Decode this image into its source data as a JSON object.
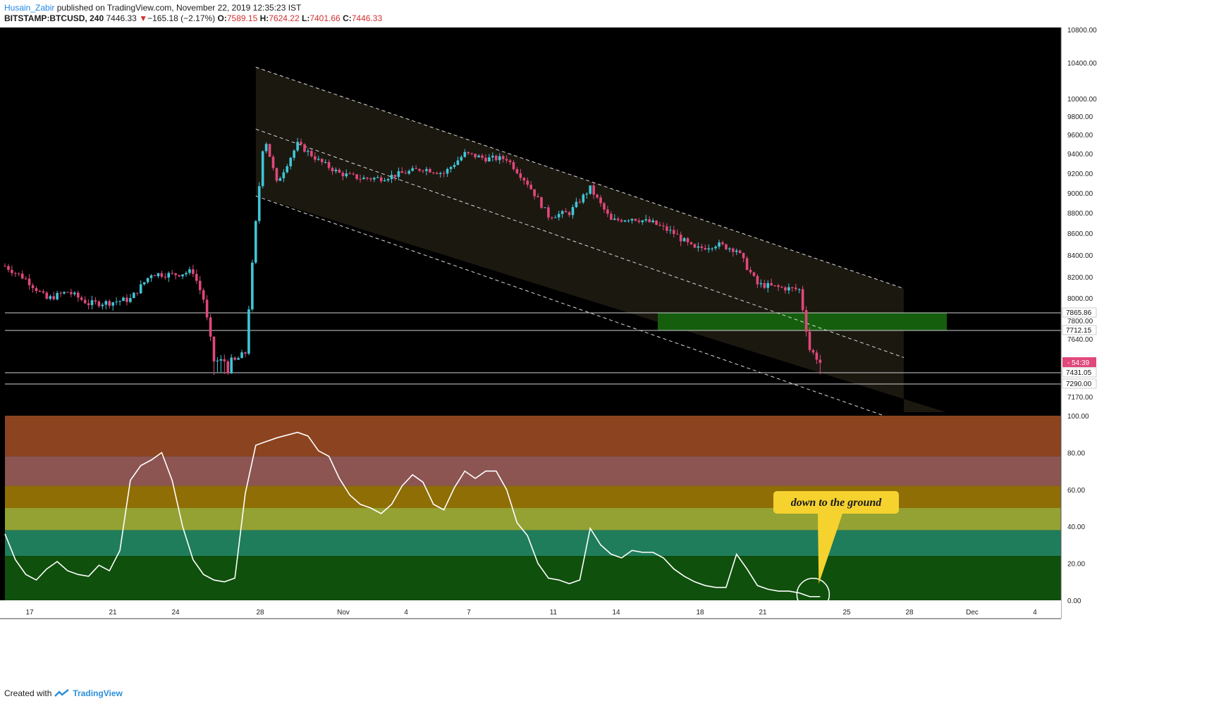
{
  "header": {
    "author": "Husain_Zabir",
    "published_text": "published on TradingView.com, November 22, 2019 12:35:23 IST",
    "symbol": "BITSTAMP:BTCUSD, 240",
    "last": "7446.33",
    "change_arrow": "▼",
    "change": "−165.18 (−2.17%)",
    "o_label": "O:",
    "o": "7589.15",
    "h_label": "H:",
    "h": "7624.22",
    "l_label": "L:",
    "l": "7401.66",
    "c_label": "C:",
    "c": "7446.33"
  },
  "footer": {
    "created_with": "Created with",
    "brand": "TradingView"
  },
  "colors": {
    "up": "#3fc6d6",
    "down": "#e0487a",
    "bg": "#000000",
    "channel_fill": "#1b1810",
    "zone": "#155e0e",
    "oscillator_line": "#ffffff",
    "annotation_bg": "#f5d22e"
  },
  "annotation": "down to the ground",
  "chart_data": [
    {
      "type": "candlestick",
      "title": "",
      "xlabels": [
        "17",
        "21",
        "24",
        "28",
        "Nov",
        "4",
        "7",
        "11",
        "14",
        "18",
        "21",
        "25",
        "28",
        "Dec",
        "4"
      ],
      "price_ticks": [
        10800,
        10400,
        10000,
        9800,
        9600,
        9400,
        9200,
        9000,
        8800,
        8600,
        8400,
        8200,
        8000,
        7800,
        7640,
        7170
      ],
      "level_labels": [
        "7865.86",
        "7712.15",
        "7431.05",
        "7290.00"
      ],
      "horizontal_lines": [
        7865.86,
        7712.15,
        7431.05,
        7290.0
      ],
      "current_price_label": "54:39",
      "demand_zone": {
        "from": 7712.15,
        "to": 7865.86
      },
      "channel": {
        "upper": [
          {
            "x": "2019-10-26",
            "y": 10350
          },
          {
            "x": "2019-11-26",
            "y": 8090
          }
        ],
        "middle": [
          {
            "x": "2019-10-26",
            "y": 9660
          },
          {
            "x": "2019-11-26",
            "y": 7480
          }
        ],
        "lower": [
          {
            "x": "2019-10-26",
            "y": 8970
          },
          {
            "x": "2019-11-26",
            "y": 6880
          }
        ]
      },
      "close_path": [
        {
          "x": "2019-10-14",
          "y": 8300
        },
        {
          "x": "2019-10-15",
          "y": 8180
        },
        {
          "x": "2019-10-16",
          "y": 7990
        },
        {
          "x": "2019-10-17",
          "y": 8060
        },
        {
          "x": "2019-10-18",
          "y": 7950
        },
        {
          "x": "2019-10-19",
          "y": 7960
        },
        {
          "x": "2019-10-20",
          "y": 7990
        },
        {
          "x": "2019-10-21",
          "y": 8230
        },
        {
          "x": "2019-10-22",
          "y": 8220
        },
        {
          "x": "2019-10-23",
          "y": 8250
        },
        {
          "x": "2019-10-23.5",
          "y": 7990
        },
        {
          "x": "2019-10-24",
          "y": 7450
        },
        {
          "x": "2019-10-25",
          "y": 7450
        },
        {
          "x": "2019-10-25.5",
          "y": 7520
        },
        {
          "x": "2019-10-26",
          "y": 8700
        },
        {
          "x": "2019-10-26.4",
          "y": 9600
        },
        {
          "x": "2019-10-27",
          "y": 9100
        },
        {
          "x": "2019-10-28",
          "y": 9500
        },
        {
          "x": "2019-10-29",
          "y": 9330
        },
        {
          "x": "2019-10-30",
          "y": 9200
        },
        {
          "x": "2019-10-31",
          "y": 9150
        },
        {
          "x": "2019-11-01",
          "y": 9150
        },
        {
          "x": "2019-11-02",
          "y": 9200
        },
        {
          "x": "2019-11-03",
          "y": 9250
        },
        {
          "x": "2019-11-04",
          "y": 9200
        },
        {
          "x": "2019-11-05",
          "y": 9400
        },
        {
          "x": "2019-11-06",
          "y": 9350
        },
        {
          "x": "2019-11-07",
          "y": 9350
        },
        {
          "x": "2019-11-08",
          "y": 9100
        },
        {
          "x": "2019-11-09",
          "y": 8770
        },
        {
          "x": "2019-11-10",
          "y": 8800
        },
        {
          "x": "2019-11-11",
          "y": 9050
        },
        {
          "x": "2019-11-12",
          "y": 8720
        },
        {
          "x": "2019-11-13",
          "y": 8750
        },
        {
          "x": "2019-11-14",
          "y": 8700
        },
        {
          "x": "2019-11-15",
          "y": 8600
        },
        {
          "x": "2019-11-16",
          "y": 8450
        },
        {
          "x": "2019-11-17",
          "y": 8500
        },
        {
          "x": "2019-11-18",
          "y": 8450
        },
        {
          "x": "2019-11-19",
          "y": 8130
        },
        {
          "x": "2019-11-20",
          "y": 8100
        },
        {
          "x": "2019-11-21",
          "y": 8080
        },
        {
          "x": "2019-11-21.5",
          "y": 7550
        },
        {
          "x": "2019-11-22",
          "y": 7446
        }
      ]
    },
    {
      "type": "line",
      "title": "",
      "y_ticks": [
        100,
        80,
        60,
        40,
        20,
        0
      ],
      "ylim": [
        0,
        100
      ],
      "bands": [
        {
          "from": 78,
          "to": 100,
          "color": "#8c4420"
        },
        {
          "from": 62,
          "to": 78,
          "color": "#8c5552"
        },
        {
          "from": 50,
          "to": 62,
          "color": "#8f6e06"
        },
        {
          "from": 38,
          "to": 50,
          "color": "#93a233"
        },
        {
          "from": 24,
          "to": 38,
          "color": "#1f7d5b"
        },
        {
          "from": 0,
          "to": 24,
          "color": "#0f500c"
        }
      ],
      "series": [
        {
          "x": [
            "10-14",
            "10-14.5",
            "10-15",
            "10-15.5",
            "10-16",
            "10-16.5",
            "10-17",
            "10-17.5",
            "10-18",
            "10-18.5",
            "10-19",
            "10-19.5",
            "10-20",
            "10-20.5",
            "10-21",
            "10-21.5",
            "10-22",
            "10-22.5",
            "10-23",
            "10-23.5",
            "10-24",
            "10-24.5",
            "10-25",
            "10-25.5",
            "10-26",
            "10-26.5",
            "10-27",
            "10-28",
            "10-28.5",
            "10-29",
            "10-29.5",
            "10-30",
            "10-30.5",
            "10-31",
            "10-31.5",
            "11-01",
            "11-01.5",
            "11-02",
            "11-02.5",
            "11-03",
            "11-03.5",
            "11-04",
            "11-04.5",
            "11-05",
            "11-05.5",
            "11-06",
            "11-06.5",
            "11-07",
            "11-07.5",
            "11-08",
            "11-08.5",
            "11-09",
            "11-09.5",
            "11-10",
            "11-10.5",
            "11-11",
            "11-11.5",
            "11-12",
            "11-12.5",
            "11-13",
            "11-13.5",
            "11-14",
            "11-14.5",
            "11-15",
            "11-15.5",
            "11-16",
            "11-16.5",
            "11-17",
            "11-17.5",
            "11-18",
            "11-18.5",
            "11-19",
            "11-19.5",
            "11-20",
            "11-20.5",
            "11-21",
            "11-21.5",
            "11-22"
          ],
          "values": [
            36,
            22,
            14,
            11,
            17,
            21,
            16,
            14,
            13,
            19,
            16,
            27,
            65,
            73,
            76,
            80,
            65,
            40,
            22,
            14,
            11,
            10,
            12,
            58,
            84,
            86,
            88,
            91,
            89,
            81,
            78,
            66,
            57,
            52,
            50,
            47,
            52,
            62,
            68,
            64,
            52,
            49,
            61,
            70,
            66,
            70,
            70,
            60,
            42,
            35,
            20,
            12,
            11,
            9,
            11,
            39,
            30,
            25,
            23,
            27,
            26,
            26,
            23,
            17,
            13,
            10,
            8,
            7,
            7,
            25,
            17,
            8,
            6,
            5,
            5,
            4,
            2,
            2
          ]
        }
      ]
    }
  ]
}
